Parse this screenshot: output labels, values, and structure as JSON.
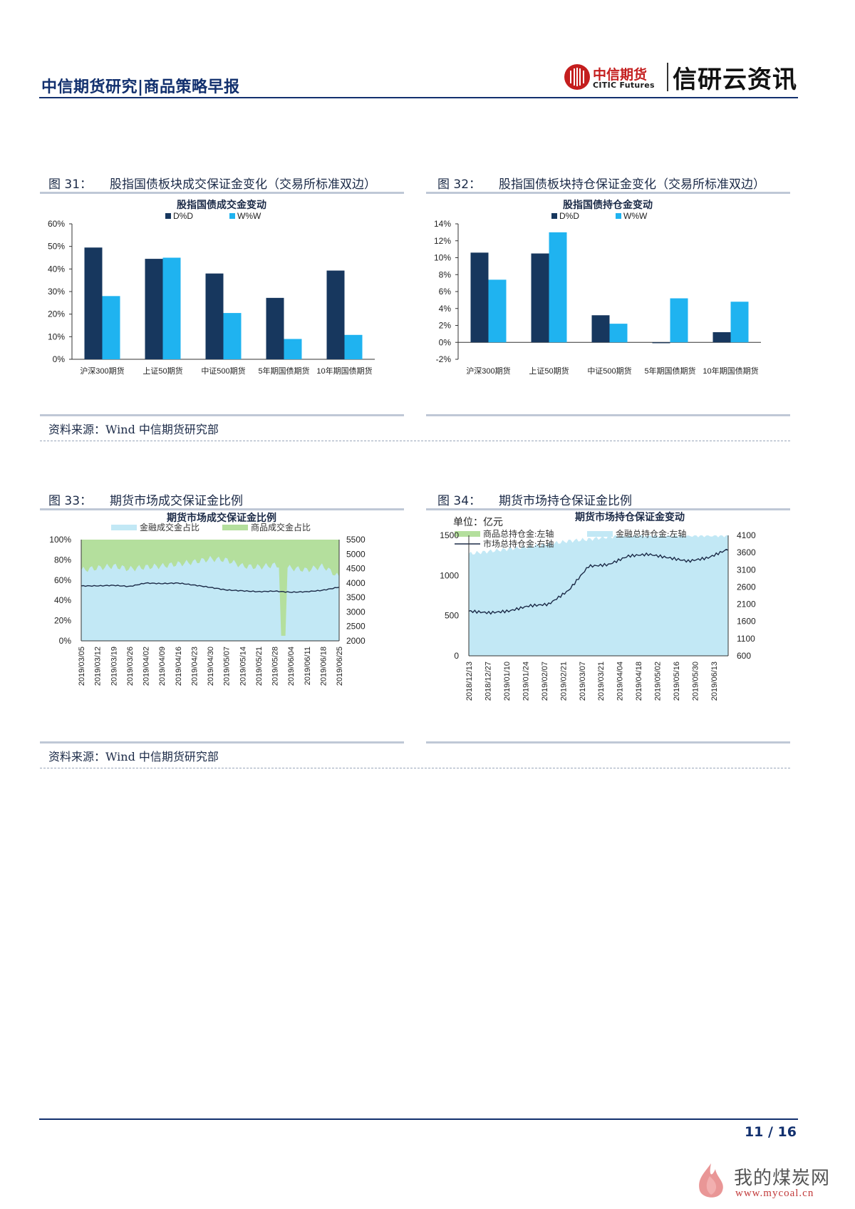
{
  "header": {
    "title": "中信期货研究|商品策略早报",
    "logo_cn": "中信期货",
    "logo_en": "CITIC Futures",
    "brand": "信研云资讯"
  },
  "figures": {
    "fig31": {
      "num": "图 31：",
      "caption": "股指国债板块成交保证金变化（交易所标准双边）"
    },
    "fig32": {
      "num": "图 32：",
      "caption": "股指国债板块持仓保证金变化（交易所标准双边）"
    },
    "fig33": {
      "num": "图 33：",
      "caption": "期货市场成交保证金比例"
    },
    "fig34": {
      "num": "图 34：",
      "caption": "期货市场持仓保证金比例"
    }
  },
  "sources": {
    "top": "资料来源：Wind  中信期货研究部",
    "bottom": "资料来源：Wind  中信期货研究部"
  },
  "footer": {
    "page": "11 / 16"
  },
  "watermark": {
    "cn": "我的煤炭网",
    "url": "www.mycoal.cn"
  },
  "colors": {
    "dark": "#17375e",
    "light": "#1fb3f0",
    "navy": "#12306e",
    "area_light": "#c2e8f5",
    "area_green": "#b4df9d"
  },
  "chart_data": [
    {
      "type": "bar",
      "title": "股指国债成交金变动",
      "categories": [
        "沪深300期货",
        "上证50期货",
        "中证500期货",
        "5年期国债期货",
        "10年期国债期货"
      ],
      "series": [
        {
          "name": "D%D",
          "values": [
            49.5,
            44.5,
            38,
            27.2,
            39.3
          ]
        },
        {
          "name": "W%W",
          "values": [
            28,
            45,
            20.5,
            9,
            10.8
          ]
        }
      ],
      "ylim": [
        0,
        60
      ],
      "yticks": [
        "0%",
        "10%",
        "20%",
        "30%",
        "40%",
        "50%",
        "60%"
      ],
      "legend": "top"
    },
    {
      "type": "bar",
      "title": "股指国债持仓金变动",
      "categories": [
        "沪深300期货",
        "上证50期货",
        "中证500期货",
        "5年期国债期货",
        "10年期国债期货"
      ],
      "series": [
        {
          "name": "D%D",
          "values": [
            10.6,
            10.5,
            3.2,
            -0.1,
            1.2
          ]
        },
        {
          "name": "W%W",
          "values": [
            7.4,
            13,
            2.2,
            5.2,
            4.8
          ]
        }
      ],
      "ylim": [
        -2,
        14
      ],
      "yticks": [
        "-2%",
        "0%",
        "2%",
        "4%",
        "6%",
        "8%",
        "10%",
        "12%",
        "14%"
      ],
      "legend": "top"
    },
    {
      "type": "area",
      "title": "期货市场成交保证金比例",
      "legend_items": [
        "金融成交金占比",
        "商品成交金占比"
      ],
      "x": [
        "2019/03/05",
        "2019/03/12",
        "2019/03/19",
        "2019/03/26",
        "2019/04/02",
        "2019/04/09",
        "2019/04/16",
        "2019/04/23",
        "2019/04/30",
        "2019/05/07",
        "2019/05/14",
        "2019/05/21",
        "2019/05/28",
        "2019/06/04",
        "2019/06/11",
        "2019/06/18",
        "2019/06/25"
      ],
      "financial_share": [
        70,
        72,
        74,
        71,
        73,
        74,
        76,
        78,
        81,
        80,
        74,
        73,
        75,
        72,
        70,
        74,
        63
      ],
      "dip_near": "2019/06/06",
      "right_axis_line": [
        3900,
        3900,
        3920,
        3880,
        4000,
        3980,
        4000,
        3930,
        3850,
        3760,
        3730,
        3700,
        3720,
        3680,
        3700,
        3750,
        3860
      ],
      "left_ticks": [
        "0%",
        "20%",
        "40%",
        "60%",
        "80%",
        "100%"
      ],
      "right_ticks": [
        "2000",
        "2500",
        "3000",
        "3500",
        "4000",
        "4500",
        "5000",
        "5500"
      ],
      "ylim_left": [
        0,
        100
      ],
      "ylim_right": [
        2000,
        5500
      ]
    },
    {
      "type": "area",
      "title": "期货市场持仓保证金变动",
      "unit_label": "单位：亿元",
      "legend_items": [
        "商品总持仓金:左轴",
        "金融总持仓金:左轴",
        "市场总持仓金:右轴"
      ],
      "x": [
        "2018/12/13",
        "2018/12/27",
        "2019/01/10",
        "2019/01/24",
        "2019/02/07",
        "2019/02/21",
        "2019/03/07",
        "2019/03/21",
        "2019/04/04",
        "2019/04/18",
        "2019/05/02",
        "2019/05/16",
        "2019/05/30",
        "2019/06/13"
      ],
      "area_left": [
        1270,
        1300,
        1330,
        1360,
        1390,
        1430,
        1450,
        1480,
        1500,
        1500,
        1500,
        1500,
        1500,
        1500
      ],
      "market_total": [
        1900,
        1850,
        1900,
        2050,
        2100,
        2500,
        3200,
        3250,
        3500,
        3550,
        3450,
        3350,
        3450,
        3700
      ],
      "left_ticks": [
        "0",
        "500",
        "1000",
        "1500"
      ],
      "right_ticks": [
        "600",
        "1100",
        "1600",
        "2100",
        "2600",
        "3100",
        "3600",
        "4100"
      ],
      "ylim_left": [
        0,
        1500
      ],
      "ylim_right": [
        600,
        4100
      ]
    }
  ]
}
